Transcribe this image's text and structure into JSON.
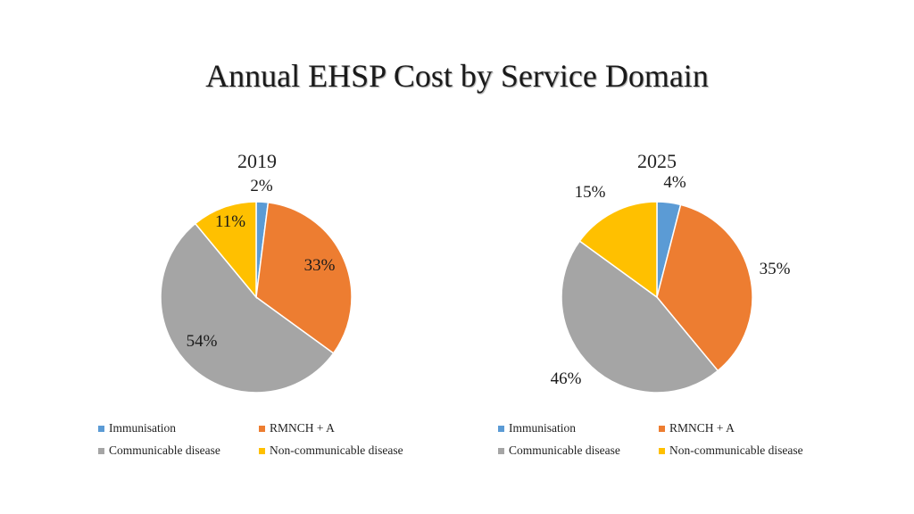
{
  "title": "Annual EHSP Cost by Service Domain",
  "colors": {
    "Immunisation": "#5b9bd5",
    "RMNCH + A": "#ed7d31",
    "Communicable disease": "#a5a5a5",
    "Non-communicable disease": "#ffc000"
  },
  "chart_data": [
    {
      "type": "pie",
      "title": "2019",
      "categories": [
        "Immunisation",
        "RMNCH + A",
        "Communicable disease",
        "Non-communicable disease"
      ],
      "values": [
        2,
        33,
        54,
        11
      ],
      "labels": [
        "2%",
        "33%",
        "54%",
        "11%"
      ],
      "legend_position": "bottom"
    },
    {
      "type": "pie",
      "title": "2025",
      "categories": [
        "Immunisation",
        "RMNCH + A",
        "Communicable disease",
        "Non-communicable disease"
      ],
      "values": [
        4,
        35,
        46,
        15
      ],
      "labels": [
        "4%",
        "35%",
        "46%",
        "15%"
      ],
      "legend_position": "bottom"
    }
  ]
}
